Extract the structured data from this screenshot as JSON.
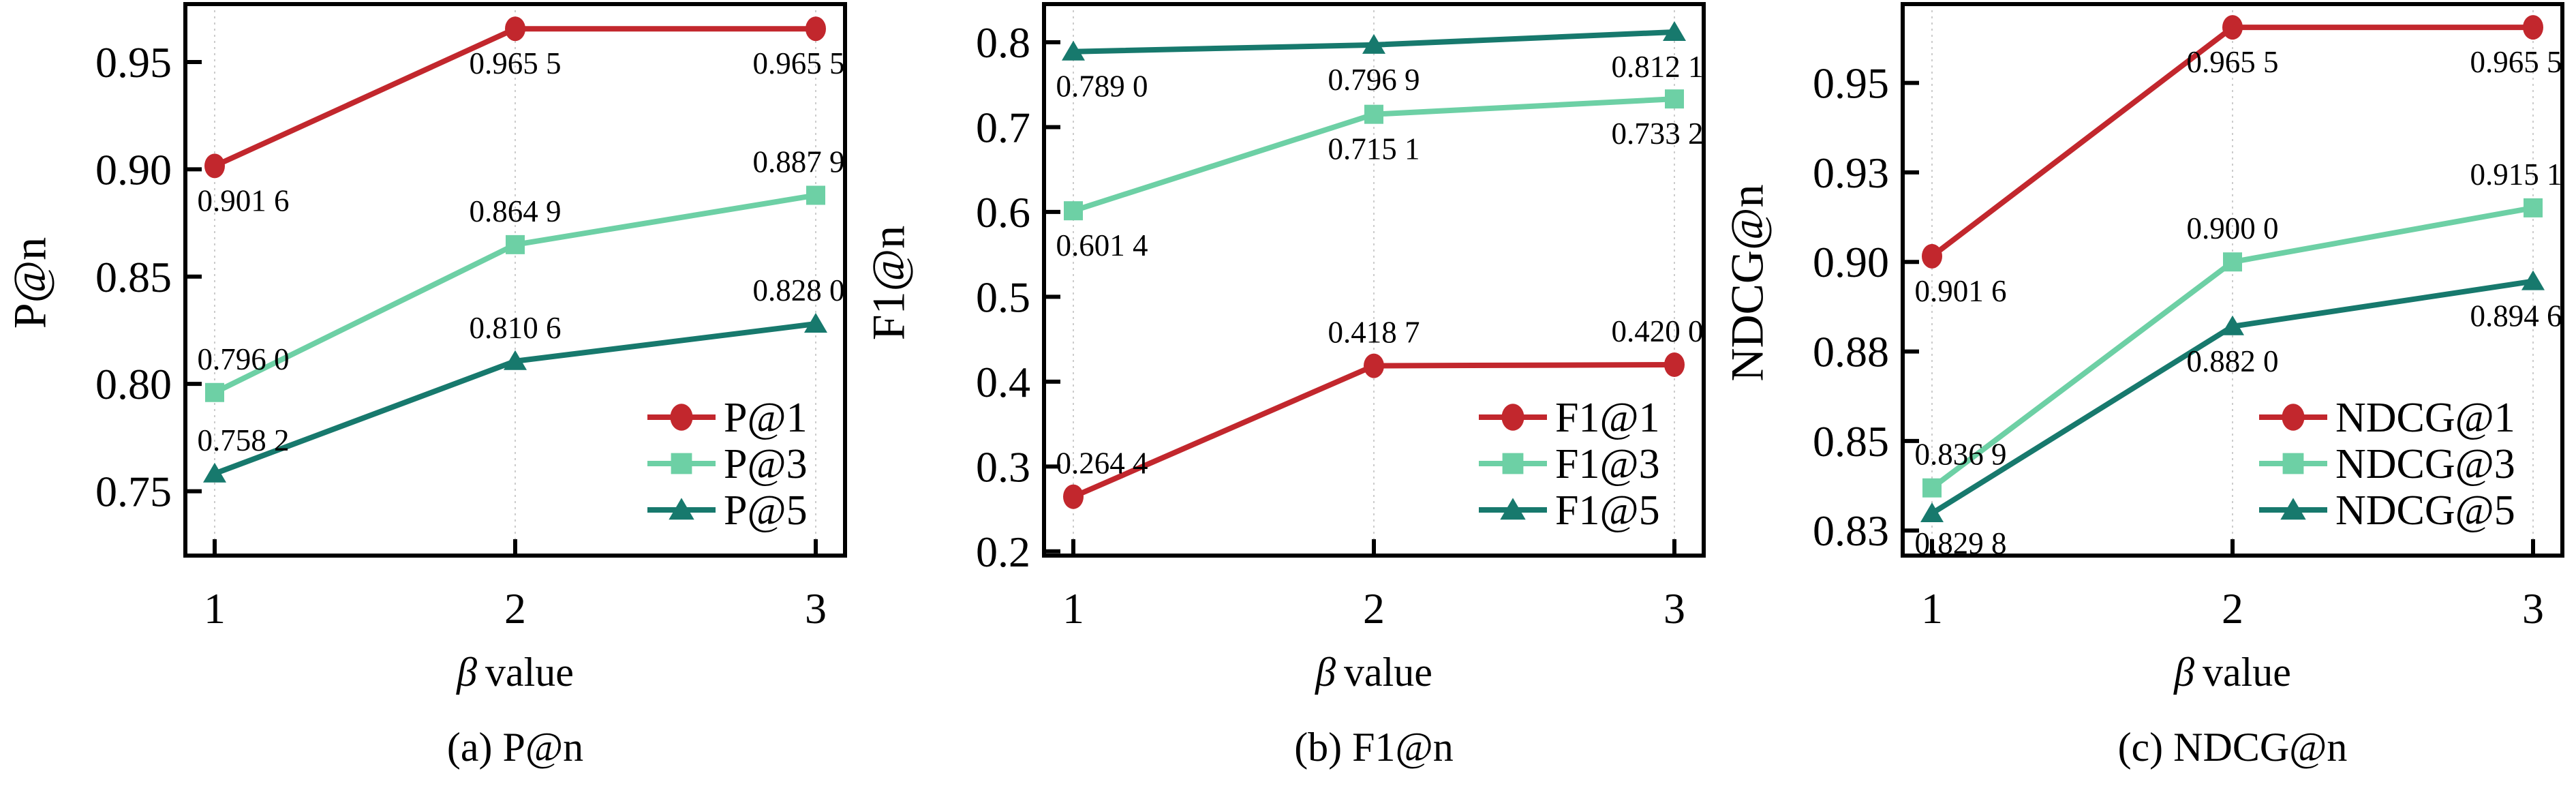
{
  "figure": {
    "background": "#ffffff",
    "colors": {
      "series_at1": "#C2272D",
      "series_at3": "#6DD0A5",
      "series_at5": "#17796D",
      "grid": "#cccccc",
      "axis": "#000000",
      "text": "#000000"
    }
  },
  "chart_data": [
    {
      "id": "a",
      "type": "line",
      "caption": "(a) P@n",
      "ylabel": "P@n",
      "xlabel": {
        "symbol": "β",
        "word": "value"
      },
      "x": [
        1,
        2,
        3
      ],
      "x_tick_labels": [
        "1",
        "2",
        "3"
      ],
      "ylim": [
        0.72,
        0.977
      ],
      "yticks": [
        {
          "v": 0.75,
          "label": "0.75"
        },
        {
          "v": 0.8,
          "label": "0.80"
        },
        {
          "v": 0.85,
          "label": "0.85"
        },
        {
          "v": 0.9,
          "label": "0.90"
        },
        {
          "v": 0.95,
          "label": "0.95"
        }
      ],
      "legend_position": "lower right",
      "series": [
        {
          "name": "P@1",
          "marker": "circle",
          "color": "#C2272D",
          "values": [
            0.9016,
            0.9655,
            0.9655
          ],
          "point_labels": [
            "0.901 6",
            "0.965 5",
            "0.965 5"
          ],
          "label_pos": [
            {
              "v": "below",
              "h": "right"
            },
            {
              "v": "below",
              "h": "center"
            },
            {
              "v": "below",
              "h": "left"
            }
          ]
        },
        {
          "name": "P@3",
          "marker": "square",
          "color": "#6DD0A5",
          "values": [
            0.796,
            0.8649,
            0.8879
          ],
          "point_labels": [
            "0.796 0",
            "0.864 9",
            "0.887 9"
          ],
          "label_pos": [
            {
              "v": "above",
              "h": "right"
            },
            {
              "v": "above",
              "h": "center"
            },
            {
              "v": "above",
              "h": "left"
            }
          ]
        },
        {
          "name": "P@5",
          "marker": "triangle",
          "color": "#17796D",
          "values": [
            0.7582,
            0.8106,
            0.828
          ],
          "point_labels": [
            "0.758 2",
            "0.810 6",
            "0.828 0"
          ],
          "label_pos": [
            {
              "v": "above",
              "h": "right"
            },
            {
              "v": "above",
              "h": "center"
            },
            {
              "v": "above",
              "h": "left"
            }
          ]
        }
      ]
    },
    {
      "id": "b",
      "type": "line",
      "caption": "(b) F1@n",
      "ylabel": "F1@n",
      "xlabel": {
        "symbol": "β",
        "word": "value"
      },
      "x": [
        1,
        2,
        3
      ],
      "x_tick_labels": [
        "1",
        "2",
        "3"
      ],
      "ylim": [
        0.195,
        0.845
      ],
      "yticks": [
        {
          "v": 0.2,
          "label": "0.2"
        },
        {
          "v": 0.3,
          "label": "0.3"
        },
        {
          "v": 0.4,
          "label": "0.4"
        },
        {
          "v": 0.5,
          "label": "0.5"
        },
        {
          "v": 0.6,
          "label": "0.6"
        },
        {
          "v": 0.7,
          "label": "0.7"
        },
        {
          "v": 0.8,
          "label": "0.8"
        }
      ],
      "legend_position": "lower right",
      "series": [
        {
          "name": "F1@1",
          "marker": "circle",
          "color": "#C2272D",
          "values": [
            0.2644,
            0.4187,
            0.42
          ],
          "point_labels": [
            "0.264 4",
            "0.418 7",
            "0.420 0"
          ],
          "label_pos": [
            {
              "v": "above",
              "h": "right"
            },
            {
              "v": "above",
              "h": "center"
            },
            {
              "v": "above",
              "h": "left"
            }
          ]
        },
        {
          "name": "F1@3",
          "marker": "square",
          "color": "#6DD0A5",
          "values": [
            0.6014,
            0.7151,
            0.7332
          ],
          "point_labels": [
            "0.601 4",
            "0.715 1",
            "0.733 2"
          ],
          "label_pos": [
            {
              "v": "below",
              "h": "right"
            },
            {
              "v": "below",
              "h": "center"
            },
            {
              "v": "below",
              "h": "left"
            }
          ]
        },
        {
          "name": "F1@5",
          "marker": "triangle",
          "color": "#17796D",
          "values": [
            0.789,
            0.7969,
            0.8121
          ],
          "point_labels": [
            "0.789 0",
            "0.796 9",
            "0.812 1"
          ],
          "label_pos": [
            {
              "v": "below",
              "h": "right"
            },
            {
              "v": "below",
              "h": "center"
            },
            {
              "v": "below",
              "h": "left"
            }
          ]
        }
      ]
    },
    {
      "id": "c",
      "type": "line",
      "caption": "(c) NDCG@n",
      "ylabel": "NDCG@n",
      "xlabel": {
        "symbol": "β",
        "word": "value"
      },
      "x": [
        1,
        2,
        3
      ],
      "x_tick_labels": [
        "1",
        "2",
        "3"
      ],
      "ylim": [
        0.818,
        0.972
      ],
      "yticks": [
        {
          "v": 0.825,
          "label": "0.83"
        },
        {
          "v": 0.85,
          "label": "0.85"
        },
        {
          "v": 0.875,
          "label": "0.88"
        },
        {
          "v": 0.9,
          "label": "0.90"
        },
        {
          "v": 0.925,
          "label": "0.93"
        },
        {
          "v": 0.95,
          "label": "0.95"
        }
      ],
      "legend_position": "lower right",
      "series": [
        {
          "name": "NDCG@1",
          "marker": "circle",
          "color": "#C2272D",
          "values": [
            0.9016,
            0.9655,
            0.9655
          ],
          "point_labels": [
            "0.901 6",
            "0.965 5",
            "0.965 5"
          ],
          "label_pos": [
            {
              "v": "below",
              "h": "right"
            },
            {
              "v": "below",
              "h": "center"
            },
            {
              "v": "below",
              "h": "left"
            }
          ]
        },
        {
          "name": "NDCG@3",
          "marker": "square",
          "color": "#6DD0A5",
          "values": [
            0.8369,
            0.9,
            0.9151
          ],
          "point_labels": [
            "0.836 9",
            "0.900 0",
            "0.915 1"
          ],
          "label_pos": [
            {
              "v": "above",
              "h": "right"
            },
            {
              "v": "above",
              "h": "center"
            },
            {
              "v": "above",
              "h": "left"
            }
          ]
        },
        {
          "name": "NDCG@5",
          "marker": "triangle",
          "color": "#17796D",
          "values": [
            0.8298,
            0.882,
            0.8946
          ],
          "point_labels": [
            "0.829 8",
            "0.882 0",
            "0.894 6"
          ],
          "label_pos": [
            {
              "v": "below",
              "h": "right"
            },
            {
              "v": "below",
              "h": "center"
            },
            {
              "v": "below",
              "h": "left"
            }
          ]
        }
      ]
    }
  ]
}
